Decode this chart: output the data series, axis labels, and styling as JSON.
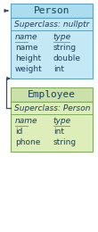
{
  "person": {
    "title": "Person",
    "header_bg": "#aaddee",
    "body_bg": "#c5e8f5",
    "border_color": "#60a0c0",
    "superclass": "Superclass: nullptr",
    "col_headers": [
      "name",
      "type"
    ],
    "members": [
      [
        "name",
        "string"
      ],
      [
        "height",
        "double"
      ],
      [
        "weight",
        "int"
      ]
    ]
  },
  "employee": {
    "title": "Employee",
    "header_bg": "#cce0aa",
    "body_bg": "#ddeebb",
    "border_color": "#80aa60",
    "superclass": "Superclass: Person",
    "col_headers": [
      "name",
      "type"
    ],
    "members": [
      [
        "id",
        "int"
      ],
      [
        "phone",
        "string"
      ]
    ]
  },
  "arrow_color": "#305070",
  "text_color": "#1a4060",
  "col_header_color": "#1a4060",
  "underline_color": "#60a0c0",
  "font_size": 6.5,
  "title_font_size": 8.0,
  "superclass_font_size": 6.5,
  "fig_width": 1.1,
  "fig_height": 2.6,
  "dpi": 100
}
